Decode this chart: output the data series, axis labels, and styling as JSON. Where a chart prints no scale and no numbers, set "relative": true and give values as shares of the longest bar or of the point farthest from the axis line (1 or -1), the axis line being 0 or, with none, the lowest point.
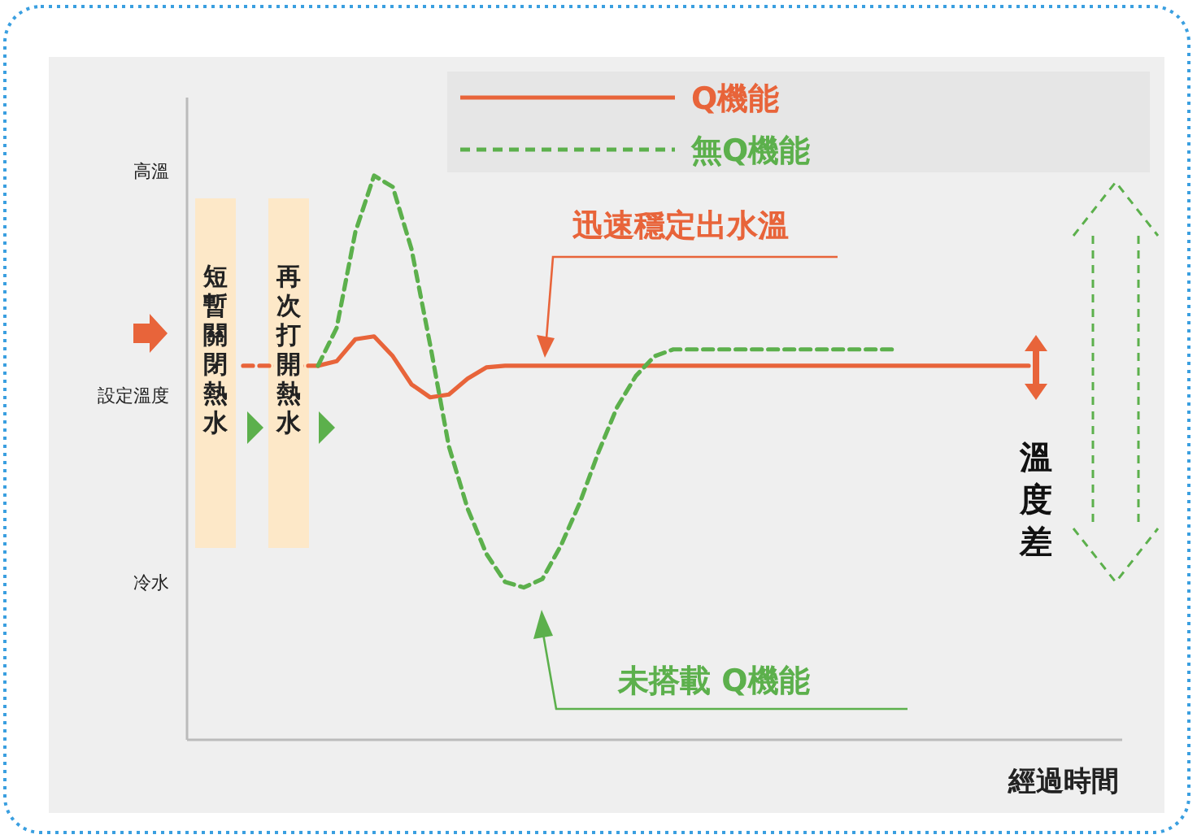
{
  "chart_data": {
    "type": "line",
    "xlabel": "經過時間",
    "categories": [
      null,
      null,
      null,
      null,
      null,
      null,
      null,
      null,
      null,
      null,
      null,
      null,
      null,
      null,
      null,
      null,
      null,
      null,
      null,
      null,
      null,
      null,
      null,
      null,
      null,
      null,
      null,
      null,
      null,
      null,
      null,
      null,
      null,
      null,
      null,
      null,
      null,
      null,
      null,
      null,
      null,
      null,
      null,
      null,
      null,
      null,
      null,
      null,
      null,
      null,
      null
    ],
    "relative": true,
    "legend": "top right",
    "marker": "none",
    "series": [
      {
        "name": "Q機能",
        "color": "#e8643a",
        "line_style": "solid",
        "values": [
          null,
          null,
          null,
          null,
          null,
          null,
          null,
          0.663,
          0.671,
          0.71,
          0.715,
          0.68,
          0.63,
          0.607,
          0.612,
          0.64,
          0.66,
          0.663,
          0.663,
          0.663,
          0.663,
          0.663,
          0.663,
          0.663,
          0.663,
          0.663,
          0.663,
          0.663,
          0.663,
          0.663,
          0.663,
          0.663,
          0.663,
          0.663,
          0.663,
          0.663,
          0.663,
          0.663,
          0.663,
          0.663,
          0.663,
          0.663,
          0.663,
          0.663,
          0.663,
          0.663,
          null,
          null,
          null,
          null,
          null
        ]
      },
      {
        "color": "#e8643a",
        "line_style": "dashed",
        "values": [
          null,
          null,
          null,
          0.663,
          0.663,
          0.663,
          0.663,
          0.663,
          null,
          null,
          null,
          null,
          null,
          null,
          null,
          null,
          null,
          null,
          null,
          null,
          null,
          null,
          null,
          null,
          null,
          null,
          null,
          null,
          null,
          null,
          null,
          null,
          null,
          null,
          null,
          null,
          null,
          null,
          null,
          null,
          null,
          null,
          null,
          null,
          null,
          null,
          null,
          null,
          null,
          null,
          null
        ]
      },
      {
        "name": "無Q機能",
        "color": "#5cb04c",
        "line_style": "dashed",
        "values": [
          null,
          null,
          null,
          null,
          null,
          null,
          null,
          0.663,
          0.73,
          0.9,
          1,
          0.98,
          0.87,
          0.7,
          0.52,
          0.41,
          0.33,
          0.28,
          0.27,
          0.285,
          0.345,
          0.42,
          0.51,
          0.59,
          0.645,
          0.68,
          0.692,
          0.692,
          0.692,
          0.692,
          0.692,
          0.692,
          0.692,
          0.692,
          0.692,
          0.692,
          0.692,
          0.692,
          0.692,
          null,
          null,
          null,
          null,
          null,
          null,
          null,
          null,
          null,
          null,
          null,
          null
        ]
      }
    ],
    "annotations": [
      "高溫",
      "設定溫度",
      "冷水",
      "短暫關閉熱水",
      "再次打開熱水",
      "迅速穩定出水溫",
      "未搭載 Q機能",
      "溫度差"
    ]
  }
}
